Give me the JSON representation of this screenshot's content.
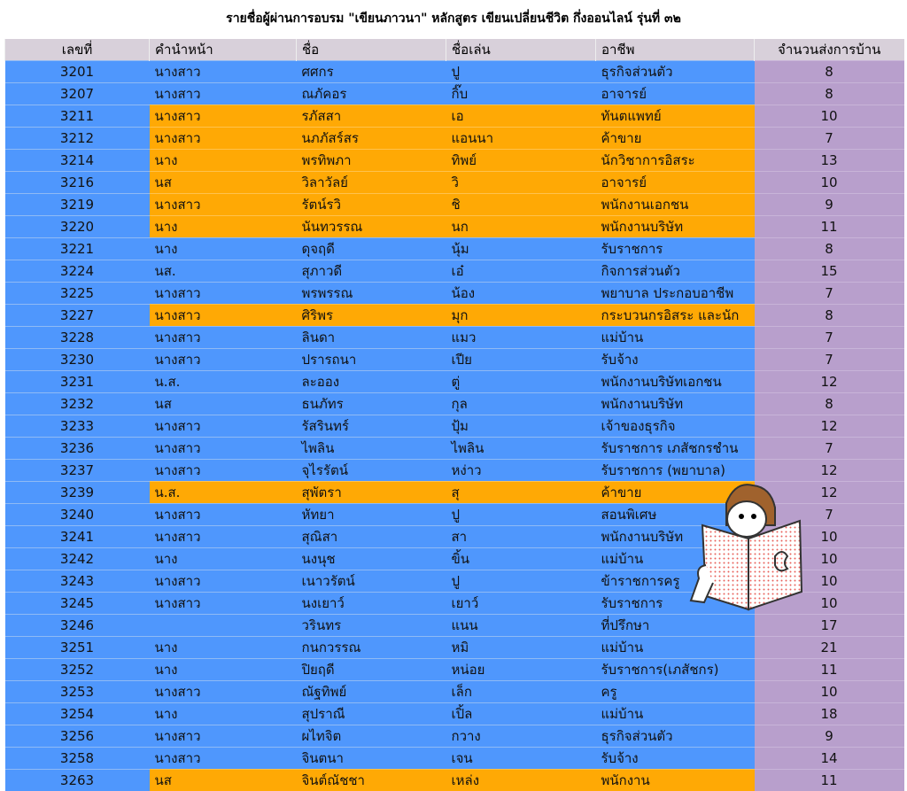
{
  "title": "รายชื่อผู้ผ่านการอบรม \"เขียนภาวนา\" หลักสูตร เขียนเปลี่ยนชีวิต กึ่งออนไลน์ รุ่นที่ ๓๒",
  "columns": [
    "เลขที่",
    "คำนำหน้า",
    "ชื่อ",
    "ชื่อเล่น",
    "อาชีพ",
    "จำนวนส่งการบ้าน"
  ],
  "colors": {
    "blue": "#4f97fd",
    "orange": "#ffa905",
    "purple": "#b89fcc",
    "header": "#d8d0da"
  },
  "illustration": "girl-reading-book-icon",
  "rows": [
    {
      "no": "3201",
      "prefix": "นางสาว",
      "name": "ศศกร",
      "nick": "ปู",
      "job": "ธุรกิจส่วนตัว",
      "count": "8",
      "highlight": false
    },
    {
      "no": "3207",
      "prefix": "นางสาว",
      "name": "ณภัคอร",
      "nick": "กิ๊บ",
      "job": "อาจารย์",
      "count": "8",
      "highlight": false
    },
    {
      "no": "3211",
      "prefix": "นางสาว",
      "name": "รภัสสา",
      "nick": "เอ",
      "job": "ทันตแพทย์",
      "count": "10",
      "highlight": true
    },
    {
      "no": "3212",
      "prefix": "นางสาว",
      "name": "นภภัสร์สร",
      "nick": "แอนนา",
      "job": "ค้าขาย",
      "count": "7",
      "highlight": true
    },
    {
      "no": "3214",
      "prefix": "นาง",
      "name": "พรทิพภา",
      "nick": "ทิพย์",
      "job": "นักวิชาการอิสระ",
      "count": "13",
      "highlight": true
    },
    {
      "no": "3216",
      "prefix": "นส",
      "name": "วิลาวัลย์",
      "nick": "วิ",
      "job": "อาจารย์",
      "count": "10",
      "highlight": true
    },
    {
      "no": "3219",
      "prefix": "นางสาว",
      "name": "รัตน์รวิ",
      "nick": "ชิ",
      "job": "พนักงานเอกชน",
      "count": "9",
      "highlight": true
    },
    {
      "no": "3220",
      "prefix": "นาง",
      "name": "นันทวรรณ",
      "nick": "นก",
      "job": "พนักงานบริษัท",
      "count": "11",
      "highlight": true
    },
    {
      "no": "3221",
      "prefix": "นาง",
      "name": "ดุจฤดี",
      "nick": "นุ้ม",
      "job": "รับราชการ",
      "count": "8",
      "highlight": false
    },
    {
      "no": "3224",
      "prefix": "นส.",
      "name": "สุภาวดี",
      "nick": "เอ๋",
      "job": "กิจการส่วนตัว",
      "count": "15",
      "highlight": false
    },
    {
      "no": "3225",
      "prefix": "นางสาว",
      "name": "พรพรรณ",
      "nick": "น้อง",
      "job": "พยาบาล ประกอบอาชีพ",
      "count": "7",
      "highlight": false
    },
    {
      "no": "3227",
      "prefix": "นางสาว",
      "name": "ศิริพร",
      "nick": "มุก",
      "job": "กระบวนกรอิสระ และนัก",
      "count": "8",
      "highlight": true
    },
    {
      "no": "3228",
      "prefix": "นางสาว",
      "name": "ลินดา",
      "nick": "แมว",
      "job": "แม่บ้าน",
      "count": "7",
      "highlight": false
    },
    {
      "no": "3230",
      "prefix": "นางสาว",
      "name": "ปรารถนา",
      "nick": "เปีย",
      "job": "รับจ้าง",
      "count": "7",
      "highlight": false
    },
    {
      "no": "3231",
      "prefix": "น.ส.",
      "name": "ละออง",
      "nick": "ตู่",
      "job": "พนักงานบริษัทเอกชน",
      "count": "12",
      "highlight": false
    },
    {
      "no": "3232",
      "prefix": "นส",
      "name": "ธนภัทร",
      "nick": "กุล",
      "job": "พนักงานบริษัท",
      "count": "8",
      "highlight": false
    },
    {
      "no": "3233",
      "prefix": "นางสาว",
      "name": "รัสรินทร์",
      "nick": "ปุ้ม",
      "job": "เจ้าของธุรกิจ",
      "count": "12",
      "highlight": false
    },
    {
      "no": "3236",
      "prefix": "นางสาว",
      "name": "ไพลิน",
      "nick": "ไพลิน",
      "job": "รับราชการ เภสัชกรชำน",
      "count": "7",
      "highlight": false
    },
    {
      "no": "3237",
      "prefix": "นางสาว",
      "name": "จุไรรัตน์",
      "nick": "หง่าว",
      "job": "รับราชการ (พยาบาล)",
      "count": "12",
      "highlight": false
    },
    {
      "no": "3239",
      "prefix": "น.ส.",
      "name": "สุพัตรา",
      "nick": "สุ",
      "job": "ค้าขาย",
      "count": "12",
      "highlight": true
    },
    {
      "no": "3240",
      "prefix": "นางสาว",
      "name": "หัทยา",
      "nick": "ปู",
      "job": "สอนพิเศษ",
      "count": "7",
      "highlight": false
    },
    {
      "no": "3241",
      "prefix": "นางสาว",
      "name": "สุณิสา",
      "nick": "สา",
      "job": "พนักงานบริษัท",
      "count": "10",
      "highlight": false
    },
    {
      "no": "3242",
      "prefix": "นาง",
      "name": "นงนุช",
      "nick": "ขิ้น",
      "job": "แม่บ้าน",
      "count": "10",
      "highlight": false
    },
    {
      "no": "3243",
      "prefix": "นางสาว",
      "name": "เนาวรัตน์",
      "nick": "ปู",
      "job": "ข้าราชการครู",
      "count": "10",
      "highlight": false
    },
    {
      "no": "3245",
      "prefix": "นางสาว",
      "name": "นงเยาว์",
      "nick": "เยาว์",
      "job": "รับราชการ",
      "count": "10",
      "highlight": false
    },
    {
      "no": "3246",
      "prefix": "",
      "name": "วรินทร",
      "nick": "แนน",
      "job": "ที่ปรึกษา",
      "count": "17",
      "highlight": false
    },
    {
      "no": "3251",
      "prefix": "นาง",
      "name": "กนกวรรณ",
      "nick": "หมิ",
      "job": "แม่บ้าน",
      "count": "21",
      "highlight": false
    },
    {
      "no": "3252",
      "prefix": "นาง",
      "name": "ปิยฤดี",
      "nick": "หน่อย",
      "job": "รับราชการ(เภสัชกร)",
      "count": "11",
      "highlight": false
    },
    {
      "no": "3253",
      "prefix": "นางสาว",
      "name": "ณัฐทิพย์",
      "nick": "เล็ก",
      "job": "ครู",
      "count": "10",
      "highlight": false
    },
    {
      "no": "3254",
      "prefix": "นาง",
      "name": "สุปราณี",
      "nick": "เปิ้ล",
      "job": "แม่บ้าน",
      "count": "18",
      "highlight": false
    },
    {
      "no": "3256",
      "prefix": "นางสาว",
      "name": "ผไทจิต",
      "nick": "กวาง",
      "job": "ธุรกิจส่วนตัว",
      "count": "9",
      "highlight": false
    },
    {
      "no": "3258",
      "prefix": "นางสาว",
      "name": "จินตนา",
      "nick": "เจน",
      "job": "รับจ้าง",
      "count": "14",
      "highlight": false
    },
    {
      "no": "3263",
      "prefix": "นส",
      "name": "จินต์ณัชชา",
      "nick": "เหล่ง",
      "job": "พนักงาน",
      "count": "11",
      "highlight": true
    }
  ]
}
